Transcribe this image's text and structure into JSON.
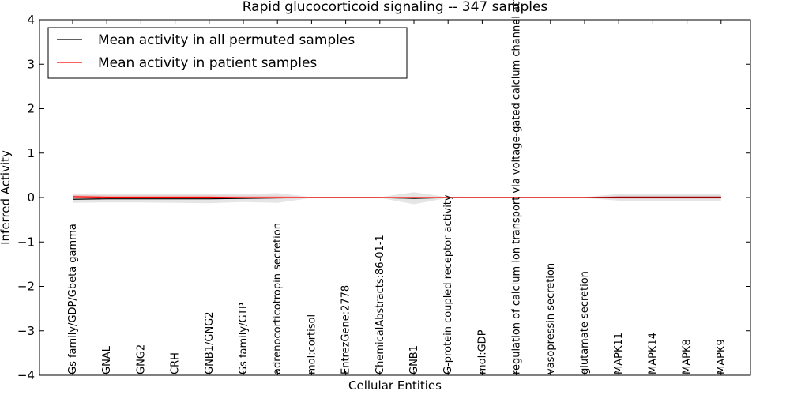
{
  "chart_data": {
    "type": "line",
    "title": "Rapid glucocorticoid signaling -- 347 samples",
    "xlabel": "Cellular Entities",
    "ylabel": "Inferred Activity",
    "ylim": [
      -4,
      4
    ],
    "yticks": [
      -4,
      -3,
      -2,
      -1,
      0,
      1,
      2,
      3,
      4
    ],
    "ytick_labels": [
      "−4",
      "−3",
      "−2",
      "−1",
      "0",
      "1",
      "2",
      "3",
      "4"
    ],
    "grid": false,
    "legend_position": "top-left",
    "categories": [
      "Gs family/GDP/Gbeta gamma",
      "GNAL",
      "GNG2",
      "CRH",
      "GNB1/GNG2",
      "Gs family/GTP",
      "adrenocorticotropin secretion",
      "mol:cortisol",
      "EntrezGene:2778",
      "ChemicalAbstracts:86-01-1",
      "GNB1",
      "G-protein coupled receptor activity",
      "mol:GDP",
      "regulation of calcium ion transport via voltage-gated calcium channel activity",
      "vasopressin secretion",
      "glutamate secretion",
      "MAPK11",
      "MAPK14",
      "MAPK8",
      "MAPK9"
    ],
    "series": [
      {
        "name": "Mean activity in all permuted samples",
        "color": "#000000",
        "values": [
          -0.04,
          -0.03,
          -0.03,
          -0.03,
          -0.03,
          -0.02,
          -0.01,
          0.0,
          0.0,
          0.0,
          -0.02,
          0.0,
          0.0,
          0.0,
          0.0,
          0.0,
          0.01,
          0.01,
          0.01,
          0.01
        ],
        "band_upper": [
          0.07,
          0.09,
          0.08,
          0.08,
          0.07,
          0.07,
          0.1,
          0.01,
          0.01,
          0.01,
          0.12,
          0.01,
          0.01,
          0.01,
          0.01,
          0.01,
          0.08,
          0.08,
          0.08,
          0.08
        ],
        "band_lower": [
          -0.12,
          -0.11,
          -0.11,
          -0.12,
          -0.13,
          -0.1,
          -0.12,
          -0.01,
          -0.01,
          -0.01,
          -0.15,
          -0.01,
          -0.01,
          -0.01,
          -0.01,
          -0.01,
          -0.07,
          -0.07,
          -0.08,
          -0.09
        ]
      },
      {
        "name": "Mean activity in patient samples",
        "color": "#ff0000",
        "values": [
          0.02,
          0.01,
          0.01,
          0.01,
          0.01,
          0.0,
          0.0,
          0.0,
          0.0,
          0.0,
          0.0,
          0.0,
          0.0,
          0.0,
          0.0,
          0.0,
          0.0,
          0.0,
          0.0,
          0.0
        ],
        "band_upper": [
          0.06,
          0.05,
          0.05,
          0.05,
          0.05,
          0.04,
          0.04,
          0.01,
          0.01,
          0.01,
          0.01,
          0.01,
          0.01,
          0.01,
          0.01,
          0.01,
          0.04,
          0.04,
          0.04,
          0.04
        ],
        "band_lower": [
          -0.02,
          -0.03,
          -0.03,
          -0.03,
          -0.03,
          -0.03,
          -0.03,
          -0.01,
          -0.01,
          -0.01,
          -0.01,
          -0.01,
          -0.01,
          -0.01,
          -0.01,
          -0.01,
          -0.03,
          -0.03,
          -0.03,
          -0.03
        ]
      }
    ]
  }
}
